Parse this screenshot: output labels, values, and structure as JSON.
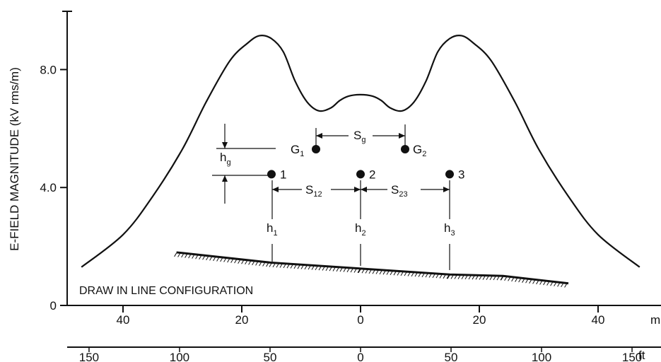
{
  "chart_data": {
    "type": "line",
    "ylabel": "E-FIELD MAGNITUDE (kV rms/m)",
    "ylim": [
      0,
      10
    ],
    "yticks": [
      "0",
      "4.0",
      "8.0"
    ],
    "xlim_m": [
      -50,
      50
    ],
    "x_axis_m": {
      "ticks": [
        "40",
        "20",
        "0",
        "20",
        "40"
      ],
      "unit": "m"
    },
    "x_axis_ft": {
      "ticks": [
        "150",
        "100",
        "50",
        "0",
        "50",
        "100",
        "150"
      ],
      "unit": "ft"
    },
    "annotation": "DRAW IN LINE CONFIGURATION",
    "series": [
      {
        "x": [
          -47,
          -40,
          -35,
          -30,
          -26,
          -22,
          -19,
          -17,
          -15,
          -13,
          -11,
          -9,
          -7,
          -5,
          -3.5,
          -2,
          0,
          2,
          3.5,
          5,
          7,
          9,
          11,
          13,
          15,
          17,
          19,
          22,
          26,
          30,
          35,
          40,
          47
        ],
        "y": [
          1.3,
          2.4,
          3.7,
          5.3,
          6.9,
          8.3,
          8.9,
          9.15,
          9.05,
          8.6,
          7.6,
          6.9,
          6.6,
          6.7,
          6.95,
          7.1,
          7.15,
          7.1,
          6.95,
          6.7,
          6.6,
          6.9,
          7.6,
          8.6,
          9.05,
          9.15,
          8.9,
          8.3,
          6.9,
          5.3,
          3.7,
          2.4,
          1.3
        ]
      }
    ],
    "conductors": [
      {
        "label": "1",
        "x": -15,
        "y": 4.45
      },
      {
        "label": "2",
        "x": 0,
        "y": 4.45
      },
      {
        "label": "3",
        "x": 15,
        "y": 4.45
      }
    ],
    "ground_wires": [
      {
        "label": "G",
        "sub": "1",
        "x": -7.5,
        "y": 5.3
      },
      {
        "label": "G",
        "sub": "2",
        "x": 7.5,
        "y": 5.3
      }
    ],
    "dimension_labels": {
      "sg": {
        "text": "S",
        "sub": "g"
      },
      "s12": {
        "text": "S",
        "sub": "12"
      },
      "s23": {
        "text": "S",
        "sub": "23"
      },
      "hg": {
        "text": "h",
        "sub": "g"
      },
      "h1": {
        "text": "h",
        "sub": "1"
      },
      "h2": {
        "text": "h",
        "sub": "2"
      },
      "h3": {
        "text": "h",
        "sub": "3"
      }
    },
    "ground_profile": {
      "x": [
        -31,
        -15,
        0,
        15,
        24,
        35
      ],
      "y": [
        1.8,
        1.45,
        1.25,
        1.05,
        1.0,
        0.75
      ]
    }
  }
}
